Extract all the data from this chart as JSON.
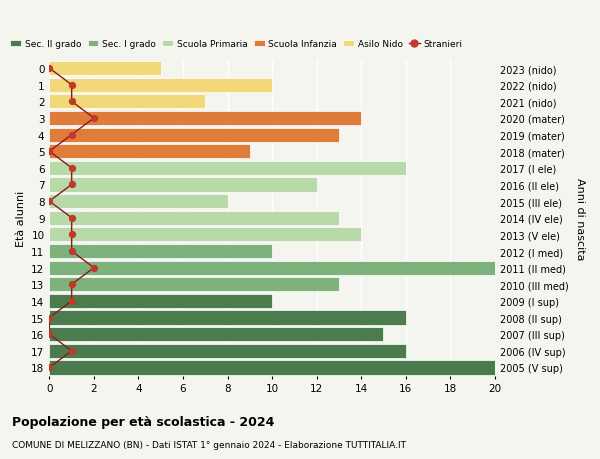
{
  "ages": [
    18,
    17,
    16,
    15,
    14,
    13,
    12,
    11,
    10,
    9,
    8,
    7,
    6,
    5,
    4,
    3,
    2,
    1,
    0
  ],
  "years": [
    "2005 (V sup)",
    "2006 (IV sup)",
    "2007 (III sup)",
    "2008 (II sup)",
    "2009 (I sup)",
    "2010 (III med)",
    "2011 (II med)",
    "2012 (I med)",
    "2013 (V ele)",
    "2014 (IV ele)",
    "2015 (III ele)",
    "2016 (II ele)",
    "2017 (I ele)",
    "2018 (mater)",
    "2019 (mater)",
    "2020 (mater)",
    "2021 (nido)",
    "2022 (nido)",
    "2023 (nido)"
  ],
  "bar_values": [
    20,
    16,
    15,
    16,
    10,
    13,
    20,
    10,
    14,
    13,
    8,
    12,
    16,
    9,
    13,
    14,
    7,
    10,
    5
  ],
  "bar_colors": [
    "#4a7c4e",
    "#4a7c4e",
    "#4a7c4e",
    "#4a7c4e",
    "#4a7c4e",
    "#7db27c",
    "#7db27c",
    "#7db27c",
    "#b8d9a8",
    "#b8d9a8",
    "#b8d9a8",
    "#b8d9a8",
    "#b8d9a8",
    "#e07c3a",
    "#e07c3a",
    "#e07c3a",
    "#f2d878",
    "#f2d878",
    "#f2d878"
  ],
  "stranieri_values": [
    0,
    1,
    0,
    0,
    1,
    1,
    2,
    1,
    1,
    1,
    0,
    1,
    1,
    0,
    1,
    2,
    1,
    1,
    0
  ],
  "legend_labels": [
    "Sec. II grado",
    "Sec. I grado",
    "Scuola Primaria",
    "Scuola Infanzia",
    "Asilo Nido",
    "Stranieri"
  ],
  "legend_colors": [
    "#4a7c4e",
    "#7db27c",
    "#b8d9a8",
    "#e07c3a",
    "#f2d878",
    "#c0392b"
  ],
  "title": "Popolazione per età scolastica - 2024",
  "subtitle": "COMUNE DI MELIZZANO (BN) - Dati ISTAT 1° gennaio 2024 - Elaborazione TUTTITALIA.IT",
  "ylabel_left": "Età alunni",
  "ylabel_right": "Anni di nascita",
  "xlim": [
    0,
    20
  ],
  "xticks": [
    0,
    2,
    4,
    6,
    8,
    10,
    12,
    14,
    16,
    18,
    20
  ],
  "stranieri_line_color": "#8b1a1a",
  "stranieri_dot_color": "#c0392b",
  "background_color": "#f5f5f0",
  "bar_edge_color": "white"
}
